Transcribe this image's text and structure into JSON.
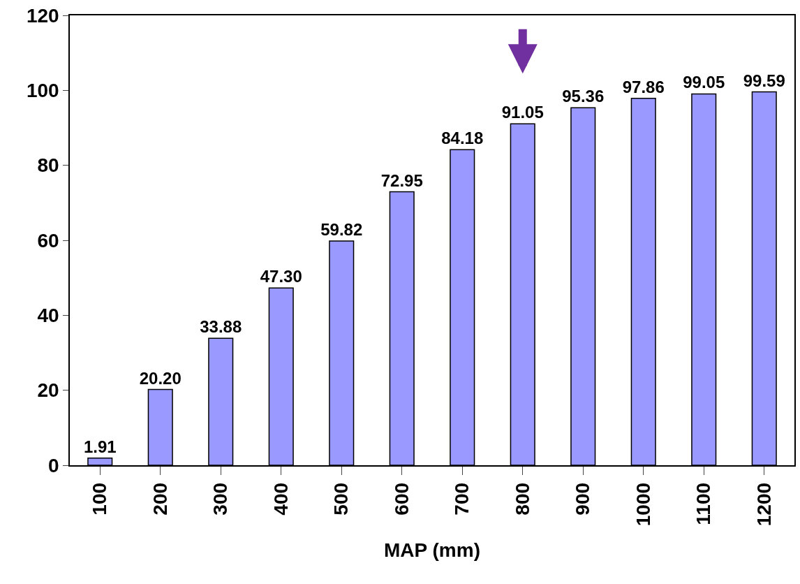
{
  "chart_data": {
    "type": "bar",
    "xlabel": "MAP (mm)",
    "categories": [
      "100",
      "200",
      "300",
      "400",
      "500",
      "600",
      "700",
      "800",
      "900",
      "1000",
      "1100",
      "1200"
    ],
    "values": [
      1.91,
      20.2,
      33.88,
      47.3,
      59.82,
      72.95,
      84.18,
      91.05,
      95.36,
      97.86,
      99.05,
      99.59
    ],
    "value_labels": [
      "1.91",
      "20.20",
      "33.88",
      "47.30",
      "59.82",
      "72.95",
      "84.18",
      "91.05",
      "95.36",
      "97.86",
      "99.05",
      "99.59"
    ],
    "color": "#9999ff",
    "ylim": [
      0,
      120
    ],
    "yticks": [
      0,
      20,
      40,
      60,
      80,
      100,
      120
    ]
  }
}
